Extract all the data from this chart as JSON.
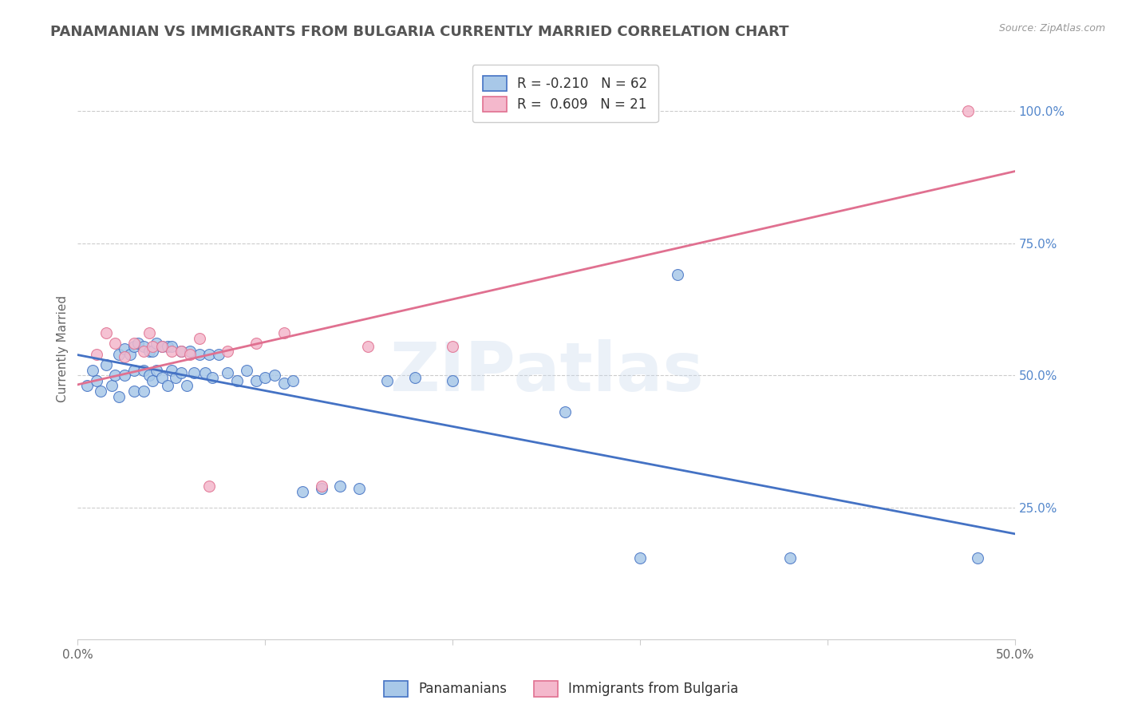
{
  "title": "PANAMANIAN VS IMMIGRANTS FROM BULGARIA CURRENTLY MARRIED CORRELATION CHART",
  "source_text": "Source: ZipAtlas.com",
  "ylabel": "Currently Married",
  "watermark": "ZIPatlas",
  "x_min": 0.0,
  "x_max": 0.5,
  "y_min": 0.0,
  "y_max": 1.1,
  "y_tick_labels_right": [
    "25.0%",
    "50.0%",
    "75.0%",
    "100.0%"
  ],
  "y_tick_vals_right": [
    0.25,
    0.5,
    0.75,
    1.0
  ],
  "blue_color": "#a8c8e8",
  "blue_line_color": "#4472c4",
  "pink_color": "#f4b8cc",
  "pink_line_color": "#e07090",
  "blue_scatter_x": [
    0.005,
    0.008,
    0.01,
    0.012,
    0.015,
    0.018,
    0.02,
    0.022,
    0.022,
    0.025,
    0.025,
    0.028,
    0.03,
    0.03,
    0.03,
    0.032,
    0.035,
    0.035,
    0.035,
    0.038,
    0.038,
    0.04,
    0.04,
    0.042,
    0.042,
    0.045,
    0.045,
    0.048,
    0.048,
    0.05,
    0.05,
    0.052,
    0.055,
    0.055,
    0.058,
    0.06,
    0.062,
    0.065,
    0.068,
    0.07,
    0.072,
    0.075,
    0.08,
    0.085,
    0.09,
    0.095,
    0.1,
    0.105,
    0.11,
    0.115,
    0.12,
    0.13,
    0.14,
    0.15,
    0.165,
    0.18,
    0.2,
    0.26,
    0.3,
    0.32,
    0.38,
    0.48
  ],
  "blue_scatter_y": [
    0.48,
    0.51,
    0.49,
    0.47,
    0.52,
    0.48,
    0.5,
    0.54,
    0.46,
    0.55,
    0.5,
    0.54,
    0.555,
    0.51,
    0.47,
    0.56,
    0.555,
    0.51,
    0.47,
    0.545,
    0.5,
    0.545,
    0.49,
    0.56,
    0.51,
    0.555,
    0.495,
    0.555,
    0.48,
    0.555,
    0.51,
    0.495,
    0.545,
    0.505,
    0.48,
    0.545,
    0.505,
    0.54,
    0.505,
    0.54,
    0.495,
    0.54,
    0.505,
    0.49,
    0.51,
    0.49,
    0.495,
    0.5,
    0.485,
    0.49,
    0.28,
    0.285,
    0.29,
    0.285,
    0.49,
    0.495,
    0.49,
    0.43,
    0.155,
    0.69,
    0.155,
    0.155
  ],
  "pink_scatter_x": [
    0.01,
    0.015,
    0.02,
    0.025,
    0.03,
    0.035,
    0.038,
    0.04,
    0.045,
    0.05,
    0.055,
    0.06,
    0.065,
    0.07,
    0.08,
    0.095,
    0.11,
    0.13,
    0.155,
    0.2,
    0.475
  ],
  "pink_scatter_y": [
    0.54,
    0.58,
    0.56,
    0.535,
    0.56,
    0.545,
    0.58,
    0.555,
    0.555,
    0.545,
    0.545,
    0.54,
    0.57,
    0.29,
    0.545,
    0.56,
    0.58,
    0.29,
    0.555,
    0.555,
    1.0
  ],
  "title_fontsize": 13,
  "axis_label_fontsize": 11,
  "tick_fontsize": 11,
  "watermark_fontsize": 62,
  "watermark_alpha": 0.35,
  "background_color": "#ffffff",
  "grid_color": "#cccccc"
}
